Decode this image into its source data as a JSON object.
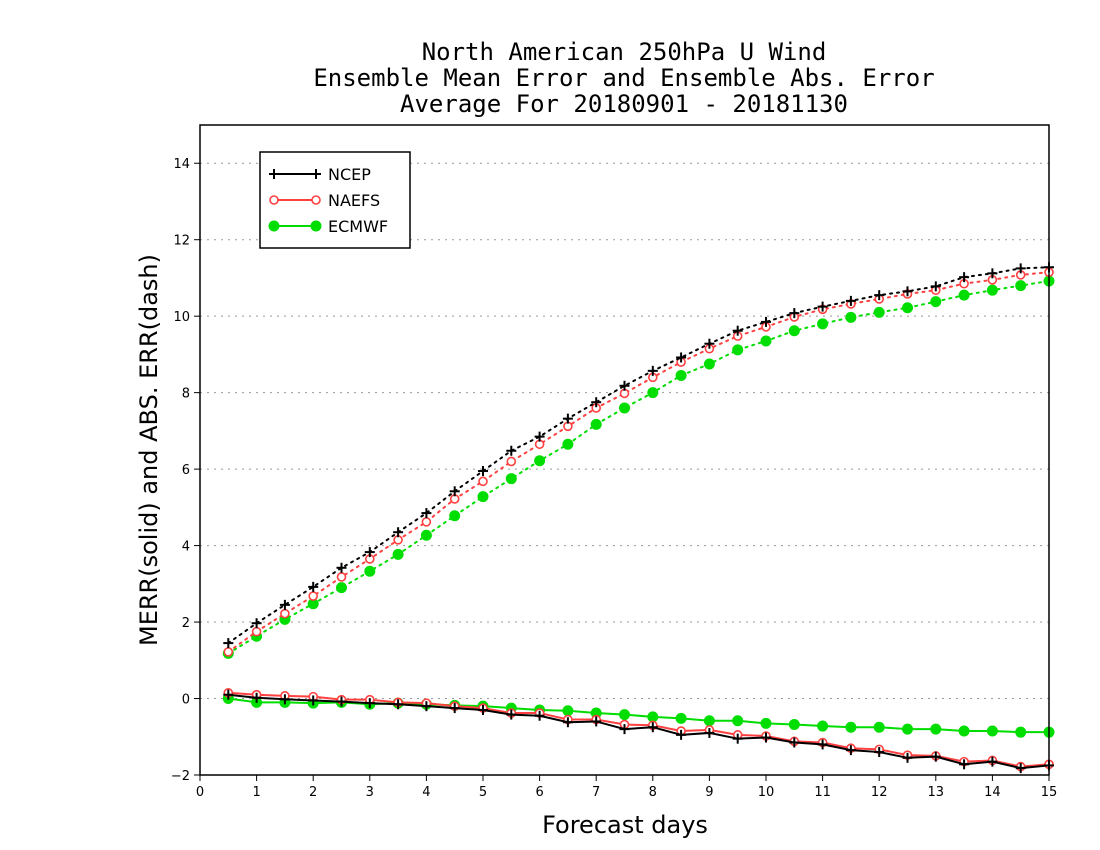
{
  "chart_data": {
    "type": "line",
    "title_lines": [
      "North American 250hPa U Wind",
      "Ensemble Mean Error and Ensemble Abs. Error",
      "Average For 20180901 - 20181130"
    ],
    "xlabel": "Forecast days",
    "ylabel": "MERR(solid) and ABS. ERR(dash)",
    "xlim": [
      0,
      15
    ],
    "ylim": [
      -2,
      15
    ],
    "xticks": [
      0,
      1,
      2,
      3,
      4,
      5,
      6,
      7,
      8,
      9,
      10,
      11,
      12,
      13,
      14,
      15
    ],
    "yticks": [
      -2,
      0,
      2,
      4,
      6,
      8,
      10,
      12,
      14
    ],
    "grid": "horizontal dotted",
    "legend_placement": "top-left",
    "x": [
      0.5,
      1,
      1.5,
      2,
      2.5,
      3,
      3.5,
      4,
      4.5,
      5,
      5.5,
      6,
      6.5,
      7,
      7.5,
      8,
      8.5,
      9,
      9.5,
      10,
      10.5,
      11,
      11.5,
      12,
      12.5,
      13,
      13.5,
      14,
      14.5,
      15
    ],
    "series": [
      {
        "name": "NCEP",
        "color": "#000000",
        "marker": "plus",
        "merr": [
          0.1,
          0.02,
          -0.02,
          -0.05,
          -0.08,
          -0.12,
          -0.15,
          -0.2,
          -0.25,
          -0.3,
          -0.42,
          -0.45,
          -0.62,
          -0.6,
          -0.8,
          -0.75,
          -0.95,
          -0.9,
          -1.05,
          -1.02,
          -1.15,
          -1.2,
          -1.35,
          -1.4,
          -1.55,
          -1.52,
          -1.72,
          -1.65,
          -1.82,
          -1.75
        ],
        "abs_err": [
          1.45,
          1.97,
          2.45,
          2.92,
          3.42,
          3.83,
          4.35,
          4.85,
          5.42,
          5.95,
          6.48,
          6.85,
          7.32,
          7.75,
          8.18,
          8.57,
          8.92,
          9.28,
          9.62,
          9.85,
          10.08,
          10.25,
          10.4,
          10.55,
          10.65,
          10.78,
          11.02,
          11.12,
          11.25,
          11.28
        ]
      },
      {
        "name": "NAEFS",
        "color": "#ff4040",
        "marker": "open-circle",
        "merr": [
          0.15,
          0.1,
          0.07,
          0.05,
          -0.03,
          -0.03,
          -0.1,
          -0.12,
          -0.2,
          -0.25,
          -0.38,
          -0.38,
          -0.55,
          -0.55,
          -0.68,
          -0.7,
          -0.85,
          -0.82,
          -0.95,
          -0.98,
          -1.12,
          -1.15,
          -1.3,
          -1.33,
          -1.48,
          -1.5,
          -1.65,
          -1.62,
          -1.78,
          -1.72
        ],
        "abs_err": [
          1.22,
          1.75,
          2.22,
          2.68,
          3.18,
          3.65,
          4.15,
          4.62,
          5.22,
          5.68,
          6.2,
          6.65,
          7.12,
          7.6,
          7.98,
          8.4,
          8.8,
          9.15,
          9.48,
          9.72,
          9.98,
          10.18,
          10.32,
          10.45,
          10.58,
          10.68,
          10.85,
          10.95,
          11.08,
          11.15
        ]
      },
      {
        "name": "ECMWF",
        "color": "#00dd00",
        "marker": "filled-circle",
        "merr": [
          0.0,
          -0.1,
          -0.1,
          -0.12,
          -0.1,
          -0.15,
          -0.12,
          -0.15,
          -0.18,
          -0.2,
          -0.25,
          -0.3,
          -0.32,
          -0.38,
          -0.42,
          -0.48,
          -0.52,
          -0.58,
          -0.58,
          -0.65,
          -0.68,
          -0.72,
          -0.75,
          -0.75,
          -0.8,
          -0.8,
          -0.85,
          -0.85,
          -0.88,
          -0.88
        ],
        "abs_err": [
          1.18,
          1.63,
          2.07,
          2.48,
          2.9,
          3.33,
          3.77,
          4.27,
          4.78,
          5.28,
          5.75,
          6.22,
          6.65,
          7.17,
          7.6,
          8.0,
          8.45,
          8.75,
          9.12,
          9.35,
          9.62,
          9.8,
          9.97,
          10.1,
          10.22,
          10.38,
          10.55,
          10.68,
          10.8,
          10.92
        ]
      }
    ]
  }
}
